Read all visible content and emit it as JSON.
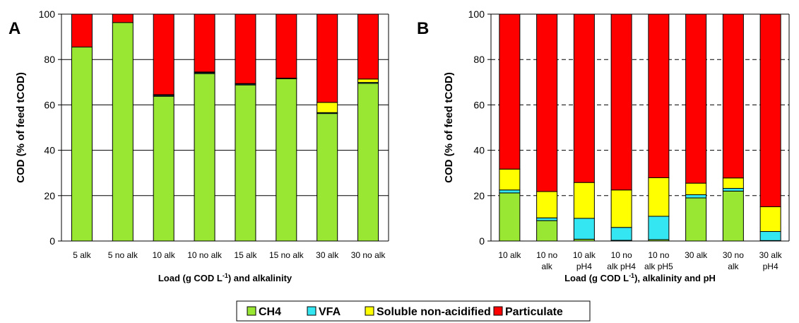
{
  "chart_data": [
    {
      "panel": "A",
      "type": "bar",
      "stacked": true,
      "xlabel": "Load (g COD L",
      "xlabel_sup": "-1",
      "xlabel_rest": ") and alkalinity",
      "ylabel": "COD (% of feed tCOD)",
      "ylim": [
        0,
        100
      ],
      "yticks": [
        0,
        20,
        40,
        60,
        80,
        100
      ],
      "grid": "horizontal solid",
      "categories": [
        [
          "5 alk"
        ],
        [
          "5 no alk"
        ],
        [
          "10 alk"
        ],
        [
          "10 no alk"
        ],
        [
          "15 alk"
        ],
        [
          "15 no alk"
        ],
        [
          "30 alk"
        ],
        [
          "30 no alk"
        ]
      ],
      "series": [
        {
          "name": "CH4",
          "color": "#99e633",
          "values": [
            85.5,
            96.3,
            63.8,
            73.8,
            68.8,
            71.5,
            56.2,
            69.5
          ]
        },
        {
          "name": "VFA",
          "color": "#33e6f2",
          "values": [
            0,
            0,
            0.4,
            0.4,
            0.4,
            0.2,
            0.4,
            0.4
          ]
        },
        {
          "name": "Soluble non-acidified",
          "color": "#ffff00",
          "values": [
            0,
            0,
            0.3,
            0.3,
            0.2,
            0.1,
            4.5,
            1.5
          ]
        },
        {
          "name": "Particulate",
          "color": "#ff0000",
          "values": [
            14.5,
            3.7,
            35.5,
            25.5,
            30.6,
            28.2,
            38.9,
            28.6
          ]
        }
      ]
    },
    {
      "panel": "B",
      "type": "bar",
      "stacked": true,
      "xlabel": "Load (g COD L",
      "xlabel_sup": "-1",
      "xlabel_rest": "), alkalinity and pH",
      "ylabel": "COD (% of feed tCOD)",
      "ylim": [
        0,
        100
      ],
      "yticks": [
        0,
        20,
        40,
        60,
        80,
        100
      ],
      "grid": "horizontal dashed",
      "categories": [
        [
          "10 alk"
        ],
        [
          "10 no",
          "alk"
        ],
        [
          "10 alk",
          "pH4"
        ],
        [
          "10 no",
          "alk pH4"
        ],
        [
          "10 no",
          "alk pH5"
        ],
        [
          "30 alk"
        ],
        [
          "30 no",
          "alk"
        ],
        [
          "30 alk",
          "pH4"
        ]
      ],
      "series": [
        {
          "name": "CH4",
          "color": "#99e633",
          "values": [
            21.2,
            9.0,
            0.8,
            0.3,
            0.6,
            19.0,
            22.0,
            0.2
          ]
        },
        {
          "name": "VFA",
          "color": "#33e6f2",
          "values": [
            1.3,
            1.2,
            9.2,
            5.7,
            10.3,
            1.4,
            1.2,
            4.0
          ]
        },
        {
          "name": "Soluble non-acidified",
          "color": "#ffff00",
          "values": [
            9.2,
            11.6,
            15.8,
            16.5,
            17.0,
            5.1,
            4.6,
            10.9
          ]
        },
        {
          "name": "Particulate",
          "color": "#ff0000",
          "values": [
            68.3,
            78.2,
            74.2,
            77.5,
            72.1,
            74.5,
            72.2,
            84.9
          ]
        }
      ]
    }
  ],
  "legend": {
    "placement": "bottom-center",
    "items": [
      {
        "label": "CH4",
        "color": "#99e633"
      },
      {
        "label": "VFA",
        "color": "#33e6f2"
      },
      {
        "label": "Soluble non-acidified",
        "color": "#ffff00"
      },
      {
        "label": "Particulate",
        "color": "#ff0000"
      }
    ]
  }
}
